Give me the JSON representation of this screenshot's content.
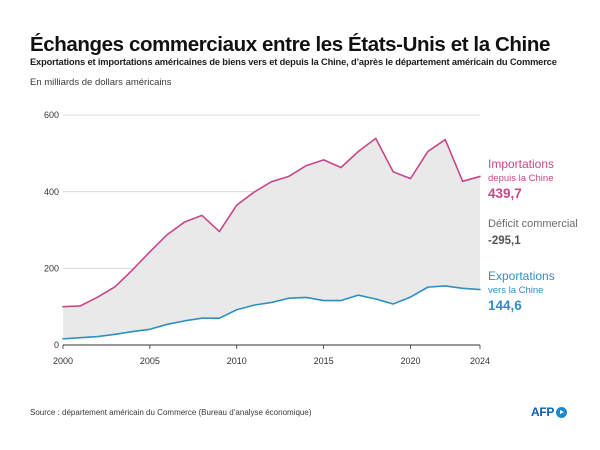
{
  "chart_data": {
    "type": "line",
    "title": "Échanges commerciaux entre les États-Unis et la Chine",
    "subtitle": "Exportations et importations américaines de biens vers et depuis la Chine, d’après le département américain du Commerce",
    "unit_note": "En milliards de dollars américains",
    "x": [
      2000,
      2001,
      2002,
      2003,
      2004,
      2005,
      2006,
      2007,
      2008,
      2009,
      2010,
      2011,
      2012,
      2013,
      2014,
      2015,
      2016,
      2017,
      2018,
      2019,
      2020,
      2021,
      2022,
      2023,
      2024
    ],
    "xlim": [
      2000,
      2024
    ],
    "ylim": [
      0,
      600
    ],
    "xticks": [
      2000,
      2005,
      2010,
      2015,
      2020,
      2024
    ],
    "yticks": [
      0,
      200,
      400,
      600
    ],
    "grid": true,
    "legend_position": "right",
    "series": [
      {
        "name": "Importations",
        "name_detail": "depuis la Chine",
        "end_label": "439,7",
        "color": "#c8468a",
        "values": [
          100,
          102,
          125,
          152,
          196,
          243,
          288,
          321,
          338,
          296,
          365,
          399,
          426,
          440,
          468,
          483,
          463,
          505,
          539,
          452,
          434,
          505,
          536,
          427,
          439.7
        ]
      },
      {
        "name": "Exportations",
        "name_detail": "vers la Chine",
        "end_label": "144,6",
        "color": "#2f8fc3",
        "values": [
          16,
          19,
          22,
          28,
          35,
          41,
          54,
          63,
          70,
          70,
          92,
          104,
          111,
          122,
          124,
          116,
          116,
          130,
          120,
          107,
          125,
          151,
          154,
          148,
          144.6
        ]
      }
    ],
    "shaded_area": {
      "name": "Déficit commercial",
      "end_label": "-295,1",
      "color": "#e9e9e9",
      "label_color": "#6b6b6b"
    },
    "source": "Source : département américain du Commerce (Bureau d’analyse économique)"
  },
  "branding": {
    "logo_text": "AFP",
    "logo_color": "#0f5ea8"
  }
}
